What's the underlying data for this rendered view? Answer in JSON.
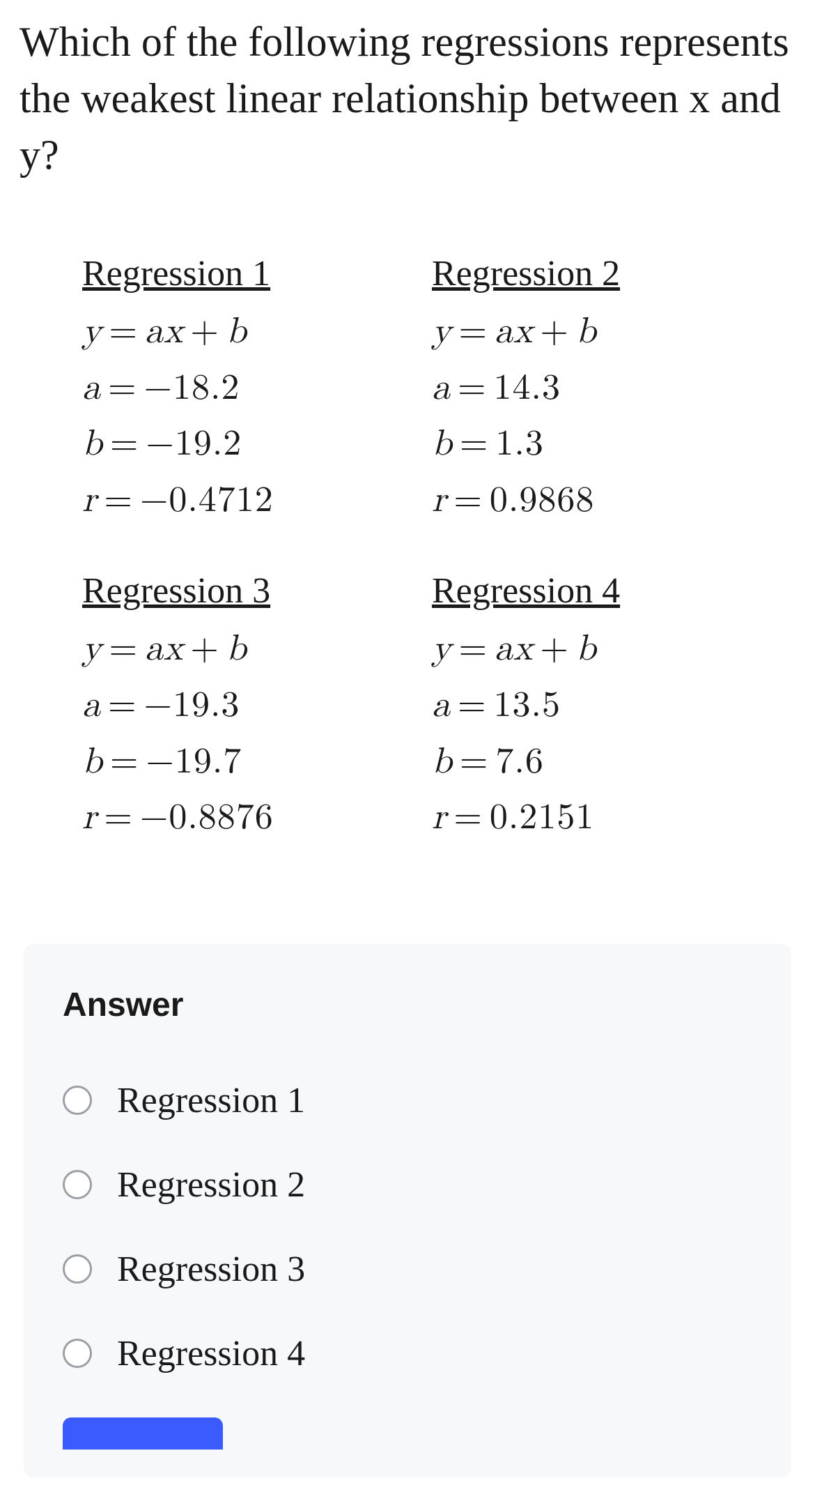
{
  "question": "Which of the following regressions represents the weakest linear relationship between x and y?",
  "regressions": [
    {
      "title": "Regression 1",
      "equation": {
        "y": "y",
        "eq": "=",
        "a_sym": "a",
        "x": "x",
        "plus": "+",
        "b_sym": "b"
      },
      "a_label": "a",
      "a_val": "−18.2",
      "b_label": "b",
      "b_val": "−19.2",
      "r_label": "r",
      "r_val": "−0.4712"
    },
    {
      "title": "Regression 2",
      "equation": {
        "y": "y",
        "eq": "=",
        "a_sym": "a",
        "x": "x",
        "plus": "+",
        "b_sym": "b"
      },
      "a_label": "a",
      "a_val": "14.3",
      "b_label": "b",
      "b_val": "1.3",
      "r_label": "r",
      "r_val": "0.9868"
    },
    {
      "title": "Regression 3",
      "equation": {
        "y": "y",
        "eq": "=",
        "a_sym": "a",
        "x": "x",
        "plus": "+",
        "b_sym": "b"
      },
      "a_label": "a",
      "a_val": "−19.3",
      "b_label": "b",
      "b_val": "−19.7",
      "r_label": "r",
      "r_val": "−0.8876"
    },
    {
      "title": "Regression 4",
      "equation": {
        "y": "y",
        "eq": "=",
        "a_sym": "a",
        "x": "x",
        "plus": "+",
        "b_sym": "b"
      },
      "a_label": "a",
      "a_val": "13.5",
      "b_label": "b",
      "b_val": "7.6",
      "r_label": "r",
      "r_val": "0.2151"
    }
  ],
  "answer_heading": "Answer",
  "options": [
    "Regression 1",
    "Regression 2",
    "Regression 3",
    "Regression 4"
  ],
  "colors": {
    "background": "#ffffff",
    "text": "#1a1a1a",
    "answer_bg": "#f7f8fa",
    "radio_border": "#9aa0a6",
    "button_blue": "#3b5bff"
  }
}
